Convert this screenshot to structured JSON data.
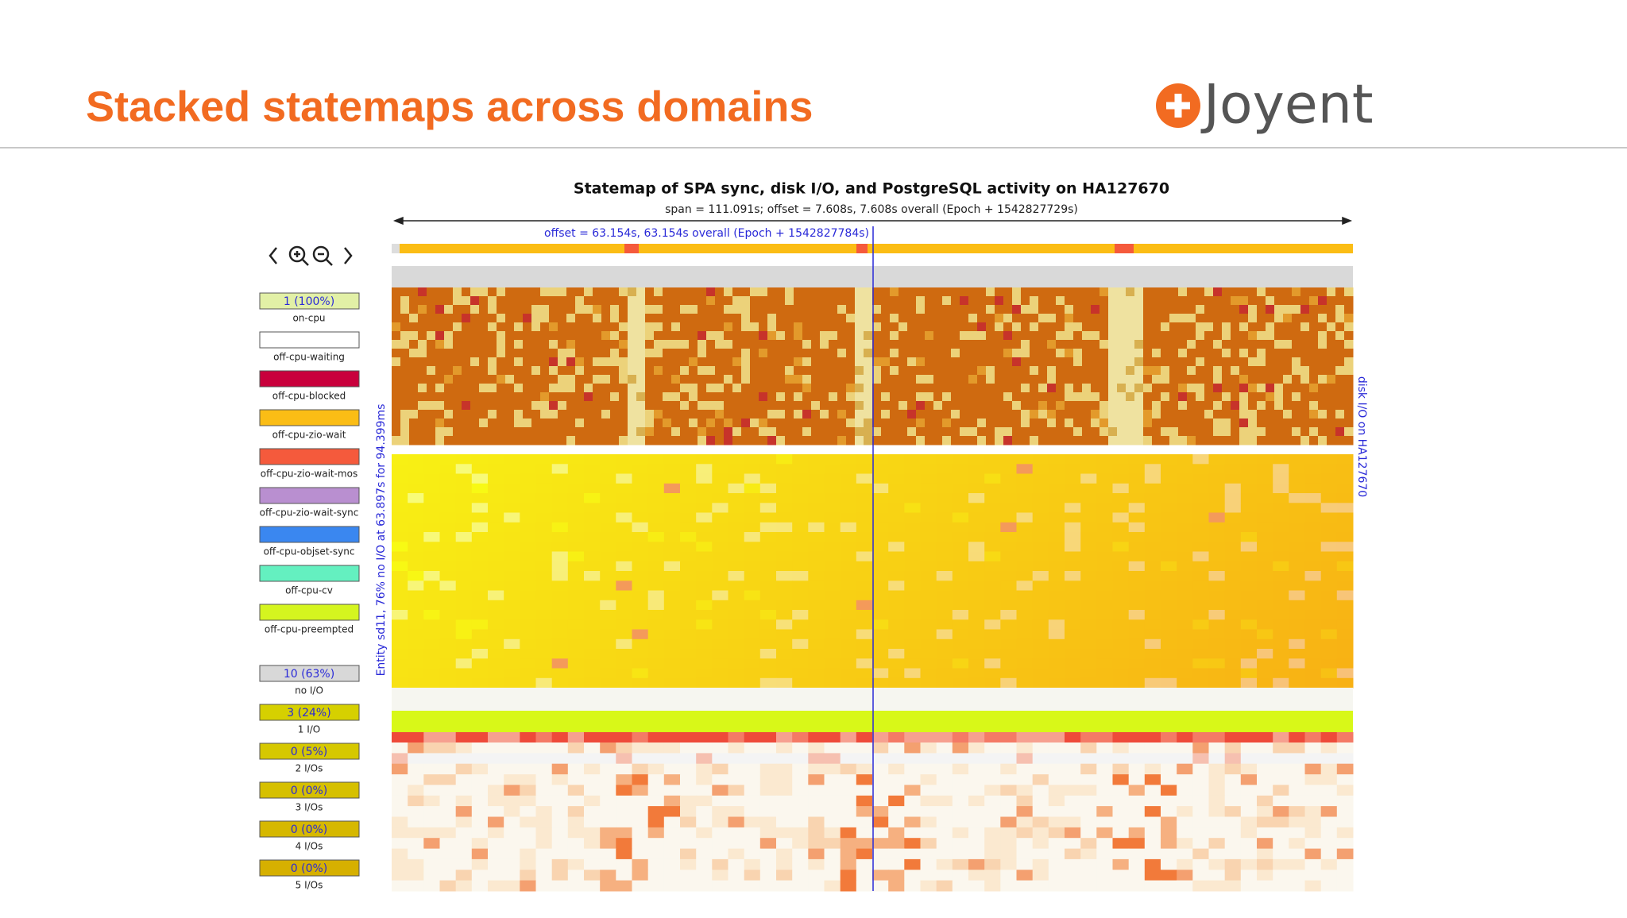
{
  "slide": {
    "title": "Stacked statemaps across domains",
    "logo": "Joyent"
  },
  "statemap": {
    "title": "Statemap of SPA sync, disk I/O, and PostgreSQL activity on HA127670",
    "subtitle": "span = 111.091s; offset = 7.608s, 7.608s overall (Epoch + 1542827729s)",
    "offset_label": "offset = 63.154s, 63.154s overall (Epoch + 1542827784s)",
    "left_axis_label": "Entity sd11, 76% no I/O at 63.897s for 94.399ms",
    "right_axis_label": "disk I/O on HA127670"
  },
  "legend": {
    "states": [
      {
        "value": "1 (100%)",
        "label": "on-cpu",
        "color": "#e2f0a6"
      },
      {
        "label": "off-cpu-waiting",
        "color": "#ffffff"
      },
      {
        "label": "off-cpu-blocked",
        "color": "#c8003c"
      },
      {
        "label": "off-cpu-zio-wait",
        "color": "#fbbd15"
      },
      {
        "label": "off-cpu-zio-wait-mos",
        "color": "#f55a3c"
      },
      {
        "label": "off-cpu-zio-wait-sync",
        "color": "#b98fd0"
      },
      {
        "label": "off-cpu-objset-sync",
        "color": "#3a87f0"
      },
      {
        "label": "off-cpu-cv",
        "color": "#64f0c0"
      },
      {
        "label": "off-cpu-preempted",
        "color": "#d5f51f"
      }
    ],
    "io_states": [
      {
        "value": "10 (63%)",
        "label": "no I/O",
        "color": "#d8d8d8"
      },
      {
        "value": "3 (24%)",
        "label": "1 I/O",
        "color": "#d6d000"
      },
      {
        "value": "0 (5%)",
        "label": "2 I/Os",
        "color": "#d6c800"
      },
      {
        "value": "0 (0%)",
        "label": "3 I/Os",
        "color": "#d6c000"
      },
      {
        "value": "0 (0%)",
        "label": "4 I/Os",
        "color": "#d6b800"
      },
      {
        "value": "0 (0%)",
        "label": "5 I/Os",
        "color": "#d6b000"
      }
    ]
  }
}
